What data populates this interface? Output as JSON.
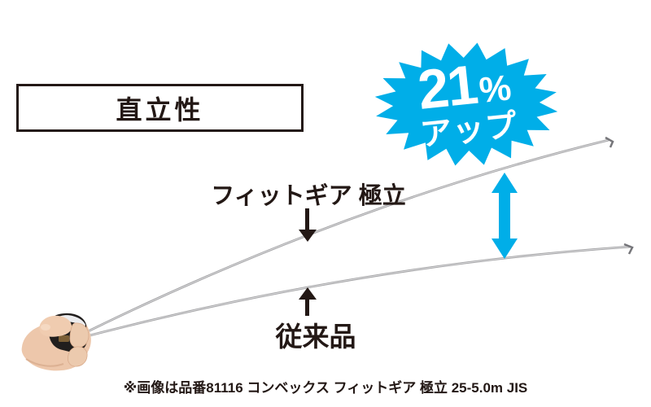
{
  "title": {
    "label": "直立性"
  },
  "badge": {
    "number": "21",
    "unit": "%",
    "word": "アップ"
  },
  "annotations": {
    "product": {
      "label": "フィットギア 極立"
    },
    "conventional": {
      "label": "従来品"
    }
  },
  "caption": {
    "text": "※画像は品番81116 コンベックス フィットギア 極立 25-5.0m JIS"
  },
  "colors": {
    "accent_blue": "#00aee8",
    "ink": "#231815",
    "tape_gray": "#a3a3a5",
    "tape_highlight": "#dadadc",
    "hook_gray": "#76767a",
    "skin": "#edc7ab",
    "body_dark": "#211e1d",
    "text_white": "#ffffff"
  }
}
